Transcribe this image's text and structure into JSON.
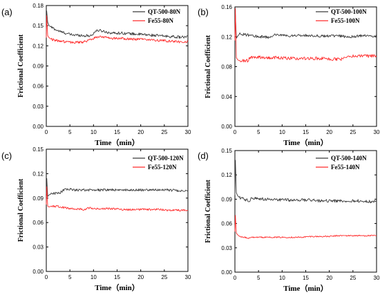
{
  "colors": {
    "qt": "#3a3a3a",
    "fe": "#ff2a2a"
  },
  "chart_data": [
    {
      "type": "line",
      "panel_label": "(a)",
      "xlabel": "Time（min）",
      "ylabel": "Frictional Coefficient",
      "xlim": [
        0,
        30
      ],
      "ylim": [
        0,
        0.18
      ],
      "x_ticks": [
        "0",
        "5",
        "10",
        "15",
        "20",
        "25",
        "30"
      ],
      "y_ticks": [
        "0.00",
        "0.03",
        "0.06",
        "0.09",
        "0.12",
        "0.15",
        "0.18"
      ],
      "legend_position": "top-right",
      "series": [
        {
          "name": "QT-500-80N",
          "color": "#3a3a3a",
          "noise": 0.002,
          "x": [
            0,
            0.08,
            0.3,
            0.6,
            1,
            2,
            3,
            4,
            5,
            6,
            7,
            8,
            9,
            9.8,
            10.2,
            11,
            12,
            13,
            14,
            16,
            18,
            20,
            22,
            24,
            26,
            28,
            30
          ],
          "y": [
            0.14,
            0.172,
            0.155,
            0.15,
            0.148,
            0.144,
            0.141,
            0.139,
            0.137,
            0.136,
            0.136,
            0.135,
            0.135,
            0.136,
            0.141,
            0.143,
            0.142,
            0.14,
            0.139,
            0.139,
            0.138,
            0.137,
            0.136,
            0.135,
            0.134,
            0.133,
            0.133
          ]
        },
        {
          "name": "Fe55-80N",
          "color": "#ff2a2a",
          "noise": 0.0018,
          "x": [
            0,
            0.08,
            0.3,
            0.6,
            1,
            2,
            3,
            4,
            5,
            6,
            7,
            8,
            9,
            10,
            11,
            12,
            13,
            14,
            16,
            18,
            20,
            22,
            24,
            26,
            28,
            30
          ],
          "y": [
            0.132,
            0.165,
            0.135,
            0.132,
            0.13,
            0.128,
            0.127,
            0.126,
            0.125,
            0.125,
            0.125,
            0.126,
            0.128,
            0.131,
            0.134,
            0.133,
            0.132,
            0.131,
            0.131,
            0.13,
            0.13,
            0.129,
            0.128,
            0.127,
            0.126,
            0.126
          ]
        }
      ]
    },
    {
      "type": "line",
      "panel_label": "(b)",
      "xlabel": "Time（min）",
      "ylabel": "Frictional Coefficient",
      "xlim": [
        0,
        30
      ],
      "ylim": [
        0,
        0.16
      ],
      "x_ticks": [
        "0",
        "5",
        "10",
        "15",
        "20",
        "25",
        "30"
      ],
      "y_ticks": [
        "0.00",
        "0.04",
        "0.08",
        "0.12",
        "0.16"
      ],
      "legend_position": "top-right",
      "series": [
        {
          "name": "QT-500-100N",
          "color": "#3a3a3a",
          "noise": 0.0018,
          "x": [
            0,
            0.1,
            0.3,
            0.6,
            1,
            2,
            3,
            4,
            5,
            6,
            7,
            8,
            8.5,
            9,
            10,
            12,
            14,
            16,
            18,
            20,
            22,
            24,
            26,
            28,
            30
          ],
          "y": [
            0.12,
            0.15,
            0.118,
            0.121,
            0.124,
            0.123,
            0.122,
            0.121,
            0.12,
            0.12,
            0.119,
            0.121,
            0.124,
            0.122,
            0.122,
            0.121,
            0.122,
            0.122,
            0.121,
            0.121,
            0.121,
            0.12,
            0.121,
            0.121,
            0.121
          ]
        },
        {
          "name": "Fe55-100N",
          "color": "#ff2a2a",
          "noise": 0.0022,
          "x": [
            0,
            0.1,
            0.3,
            0.6,
            1,
            2,
            2.8,
            3.2,
            5,
            8,
            10,
            12,
            15,
            18,
            20,
            22,
            23,
            23.5,
            24,
            26,
            28,
            30
          ],
          "y": [
            0.115,
            0.158,
            0.092,
            0.089,
            0.088,
            0.088,
            0.088,
            0.093,
            0.093,
            0.092,
            0.092,
            0.091,
            0.091,
            0.091,
            0.09,
            0.09,
            0.09,
            0.094,
            0.094,
            0.094,
            0.094,
            0.095
          ]
        }
      ]
    },
    {
      "type": "line",
      "panel_label": "(c)",
      "xlabel": "Time（min）",
      "ylabel": "Frictional Coefficient",
      "xlim": [
        0,
        30
      ],
      "ylim": [
        0,
        0.15
      ],
      "x_ticks": [
        "0",
        "5",
        "10",
        "15",
        "20",
        "25",
        "30"
      ],
      "y_ticks": [
        "0.00",
        "0.03",
        "0.06",
        "0.09",
        "0.12",
        "0.15"
      ],
      "legend_position": "top-right",
      "series": [
        {
          "name": "QT-500-120N",
          "color": "#3a3a3a",
          "noise": 0.0015,
          "x": [
            0,
            0.1,
            0.3,
            0.6,
            1,
            2,
            3,
            3.5,
            4,
            5,
            6,
            8,
            10,
            12,
            14,
            16,
            18,
            20,
            22,
            24,
            26,
            28,
            30
          ],
          "y": [
            0.095,
            0.114,
            0.092,
            0.094,
            0.095,
            0.096,
            0.097,
            0.099,
            0.101,
            0.101,
            0.1,
            0.1,
            0.1,
            0.1,
            0.1,
            0.1,
            0.1,
            0.1,
            0.1,
            0.1,
            0.1,
            0.099,
            0.099
          ]
        },
        {
          "name": "Fe55-120N",
          "color": "#ff2a2a",
          "noise": 0.0012,
          "x": [
            0,
            0.1,
            0.3,
            0.6,
            1,
            2,
            4,
            6,
            8,
            9,
            10,
            12,
            14,
            16,
            18,
            20,
            22,
            24,
            26,
            28,
            30
          ],
          "y": [
            0.082,
            0.104,
            0.08,
            0.079,
            0.08,
            0.08,
            0.078,
            0.077,
            0.076,
            0.078,
            0.077,
            0.077,
            0.077,
            0.076,
            0.076,
            0.076,
            0.076,
            0.076,
            0.075,
            0.075,
            0.075
          ]
        }
      ]
    },
    {
      "type": "line",
      "panel_label": "(d)",
      "xlabel": "Time（min）",
      "ylabel": "Frictional Coefficient",
      "xlim": [
        0,
        30
      ],
      "ylim": [
        0,
        0.15
      ],
      "x_ticks": [
        "0",
        "5",
        "10",
        "15",
        "20",
        "25",
        "30"
      ],
      "y_ticks": [
        "0.00",
        "0.03",
        "0.06",
        "0.09",
        "0.12",
        "0.15"
      ],
      "legend_position": "top-right",
      "series": [
        {
          "name": "QT-500-140N",
          "color": "#3a3a3a",
          "noise": 0.0018,
          "x": [
            0,
            0.1,
            0.3,
            0.6,
            1,
            2,
            3,
            3.5,
            4,
            6,
            8,
            10,
            12,
            14,
            16,
            18,
            20,
            22,
            24,
            26,
            28,
            30
          ],
          "y": [
            0.095,
            0.138,
            0.098,
            0.094,
            0.092,
            0.09,
            0.088,
            0.091,
            0.091,
            0.09,
            0.09,
            0.089,
            0.089,
            0.089,
            0.089,
            0.088,
            0.088,
            0.088,
            0.088,
            0.088,
            0.087,
            0.087
          ]
        },
        {
          "name": "Fe55-140N",
          "color": "#ff2a2a",
          "noise": 0.0008,
          "x": [
            0,
            0.1,
            0.3,
            0.6,
            1,
            2,
            3,
            4,
            6,
            8,
            10,
            12,
            14,
            16,
            18,
            20,
            22,
            24,
            26,
            28,
            30
          ],
          "y": [
            0.05,
            0.07,
            0.048,
            0.046,
            0.044,
            0.043,
            0.042,
            0.043,
            0.043,
            0.043,
            0.043,
            0.043,
            0.043,
            0.044,
            0.044,
            0.044,
            0.045,
            0.045,
            0.045,
            0.045,
            0.045
          ]
        }
      ]
    }
  ]
}
